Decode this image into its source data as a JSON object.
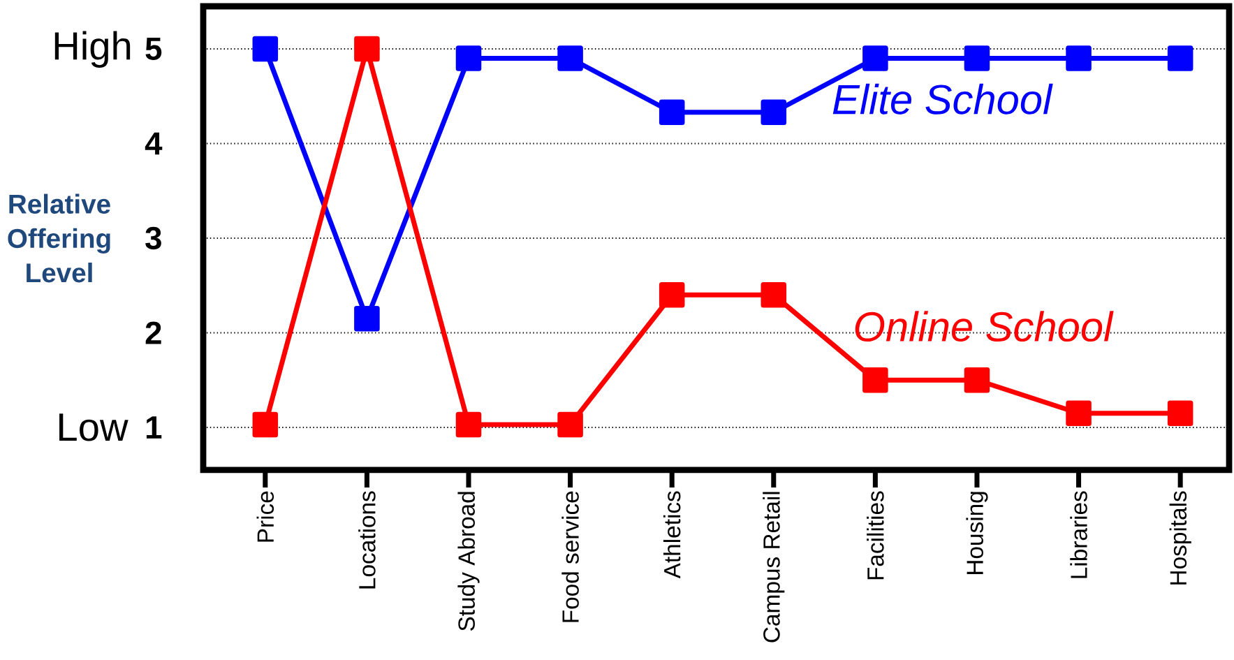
{
  "chart_data": {
    "type": "line",
    "ylabel": "Relative Offering Level",
    "categories": [
      "Price",
      "Locations",
      "Study Abroad",
      "Food service",
      "Athletics",
      "Campus Retail",
      "Facilities",
      "Housing",
      "Libraries",
      "Hospitals"
    ],
    "series": [
      {
        "name": "Elite School",
        "color": "#0000ff",
        "values": [
          5,
          2.15,
          4.9,
          4.9,
          4.33,
          4.33,
          4.9,
          4.9,
          4.9,
          4.9
        ]
      },
      {
        "name": "Online School",
        "color": "#ff0000",
        "values": [
          1.03,
          5,
          1.03,
          1.03,
          2.4,
          2.4,
          1.5,
          1.5,
          1.15,
          1.15
        ]
      }
    ],
    "ylim": [
      0.55,
      5.45
    ],
    "yticks": [
      1,
      2,
      3,
      4,
      5
    ],
    "annotations": [
      "High",
      "Low"
    ],
    "grid": "y",
    "legend": false,
    "marker": "square",
    "line_style": "solid"
  }
}
